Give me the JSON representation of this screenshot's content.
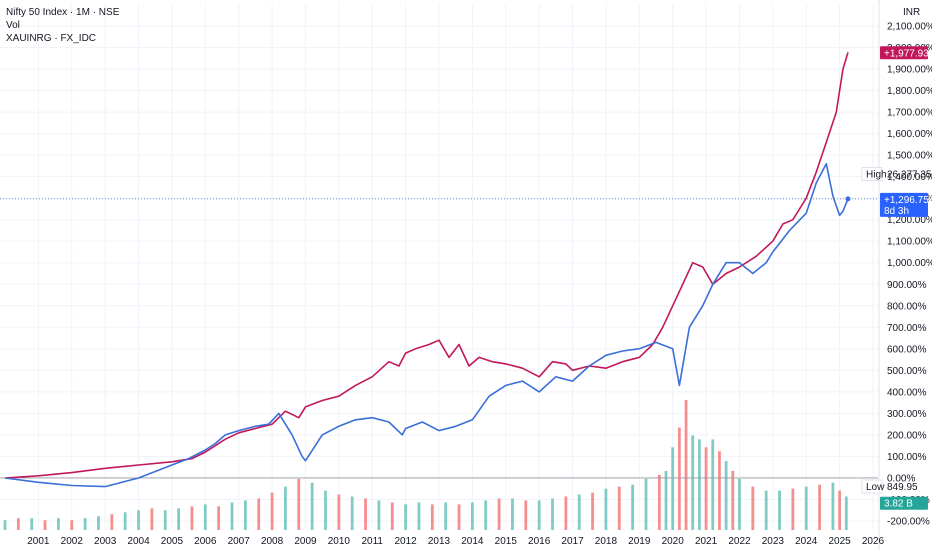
{
  "legend": {
    "title": "Nifty 50 Index · 1M · NSE",
    "vol": "Vol",
    "compare": "XAUINRG · FX_IDC"
  },
  "currency": "INR",
  "colors": {
    "nifty": "#3a6fd8",
    "gold": "#c2185b",
    "vol_up": "#80cbc4",
    "vol_down": "#f48f8f",
    "grid": "#f0f3fa",
    "text": "#131722"
  },
  "chart_data": {
    "type": "line",
    "x_ticks": [
      "2001",
      "2002",
      "2003",
      "2004",
      "2005",
      "2006",
      "2007",
      "2008",
      "2009",
      "2010",
      "2011",
      "2012",
      "2013",
      "2014",
      "2015",
      "2016",
      "2017",
      "2018",
      "2019",
      "2020",
      "2021",
      "2022",
      "2023",
      "2024",
      "2025",
      "2026"
    ],
    "y_ticks": [
      "2,100.00%",
      "2,000.00%",
      "1,900.00%",
      "1,800.00%",
      "1,700.00%",
      "1,600.00%",
      "1,500.00%",
      "1,400.00%",
      "1,300.00%",
      "1,200.00%",
      "1,100.00%",
      "1,000.00%",
      "900.00%",
      "800.00%",
      "700.00%",
      "600.00%",
      "500.00%",
      "400.00%",
      "300.00%",
      "200.00%",
      "100.00%",
      "0.00%",
      "-100.00%",
      "-200.00%"
    ],
    "ylim": [
      -200,
      2100
    ],
    "x_range": [
      2000.0,
      2026.3
    ],
    "series": [
      {
        "name": "XAUINRG · FX_IDC",
        "x": [
          2000.0,
          2001.0,
          2002.0,
          2003.0,
          2004.0,
          2005.0,
          2005.6,
          2006.0,
          2006.3,
          2006.6,
          2007.0,
          2007.5,
          2008.0,
          2008.4,
          2008.8,
          2009.0,
          2009.5,
          2010.0,
          2010.5,
          2011.0,
          2011.5,
          2011.8,
          2012.0,
          2012.3,
          2012.7,
          2013.0,
          2013.3,
          2013.6,
          2013.9,
          2014.2,
          2014.6,
          2015.0,
          2015.5,
          2016.0,
          2016.4,
          2016.8,
          2017.0,
          2017.5,
          2018.0,
          2018.5,
          2019.0,
          2019.4,
          2019.7,
          2020.0,
          2020.3,
          2020.6,
          2020.9,
          2021.2,
          2021.6,
          2022.0,
          2022.5,
          2023.0,
          2023.3,
          2023.6,
          2024.0,
          2024.3,
          2024.6,
          2024.9,
          2025.0,
          2025.1,
          2025.25
        ],
        "y": [
          0,
          10,
          25,
          45,
          60,
          75,
          90,
          120,
          150,
          180,
          210,
          230,
          250,
          310,
          280,
          330,
          360,
          380,
          430,
          470,
          540,
          520,
          580,
          600,
          620,
          640,
          560,
          620,
          520,
          560,
          540,
          530,
          510,
          470,
          540,
          530,
          500,
          520,
          510,
          540,
          560,
          620,
          700,
          800,
          900,
          1000,
          980,
          900,
          950,
          980,
          1030,
          1100,
          1180,
          1200,
          1300,
          1420,
          1560,
          1700,
          1800,
          1900,
          1977.93
        ]
      },
      {
        "name": "Nifty 50 Index",
        "x": [
          2000.0,
          2001.0,
          2002.0,
          2003.0,
          2004.0,
          2004.5,
          2005.0,
          2005.5,
          2006.0,
          2006.3,
          2006.6,
          2007.0,
          2007.5,
          2007.9,
          2008.2,
          2008.6,
          2008.9,
          2009.0,
          2009.5,
          2010.0,
          2010.5,
          2011.0,
          2011.5,
          2011.9,
          2012.0,
          2012.5,
          2013.0,
          2013.5,
          2014.0,
          2014.5,
          2015.0,
          2015.5,
          2016.0,
          2016.5,
          2017.0,
          2017.5,
          2018.0,
          2018.5,
          2019.0,
          2019.5,
          2020.0,
          2020.2,
          2020.5,
          2020.9,
          2021.2,
          2021.6,
          2022.0,
          2022.4,
          2022.8,
          2023.0,
          2023.5,
          2024.0,
          2024.3,
          2024.6,
          2024.8,
          2025.0,
          2025.1,
          2025.25
        ],
        "y": [
          0,
          -20,
          -35,
          -40,
          0,
          30,
          60,
          90,
          130,
          160,
          200,
          220,
          240,
          250,
          300,
          200,
          100,
          80,
          200,
          240,
          270,
          280,
          260,
          200,
          230,
          260,
          220,
          240,
          270,
          380,
          430,
          450,
          400,
          470,
          450,
          520,
          570,
          590,
          600,
          630,
          600,
          430,
          700,
          800,
          900,
          1000,
          1000,
          950,
          1000,
          1050,
          1150,
          1230,
          1370,
          1460,
          1310,
          1220,
          1240,
          1296.75
        ]
      }
    ],
    "volume": {
      "x": [
        2000.0,
        2000.4,
        2000.8,
        2001.2,
        2001.6,
        2002.0,
        2002.4,
        2002.8,
        2003.2,
        2003.6,
        2004.0,
        2004.4,
        2004.8,
        2005.2,
        2005.6,
        2006.0,
        2006.4,
        2006.8,
        2007.2,
        2007.6,
        2008.0,
        2008.4,
        2008.8,
        2009.2,
        2009.6,
        2010.0,
        2010.4,
        2010.8,
        2011.2,
        2011.6,
        2012.0,
        2012.4,
        2012.8,
        2013.2,
        2013.6,
        2014.0,
        2014.4,
        2014.8,
        2015.2,
        2015.6,
        2016.0,
        2016.4,
        2016.8,
        2017.2,
        2017.6,
        2018.0,
        2018.4,
        2018.8,
        2019.2,
        2019.6,
        2019.8,
        2020.0,
        2020.2,
        2020.4,
        2020.6,
        2020.8,
        2021.0,
        2021.2,
        2021.4,
        2021.6,
        2021.8,
        2022.0,
        2022.4,
        2022.8,
        2023.2,
        2023.6,
        2024.0,
        2024.4,
        2024.8,
        2025.0,
        2025.2
      ],
      "values": [
        0.5,
        0.6,
        0.6,
        0.5,
        0.6,
        0.5,
        0.6,
        0.7,
        0.8,
        0.9,
        1.0,
        1.1,
        1.0,
        1.1,
        1.2,
        1.3,
        1.2,
        1.4,
        1.5,
        1.6,
        1.9,
        2.2,
        2.6,
        2.4,
        2.0,
        1.8,
        1.7,
        1.6,
        1.5,
        1.4,
        1.3,
        1.4,
        1.3,
        1.4,
        1.3,
        1.4,
        1.5,
        1.6,
        1.6,
        1.5,
        1.5,
        1.6,
        1.7,
        1.8,
        1.9,
        2.1,
        2.2,
        2.3,
        2.6,
        2.8,
        3.0,
        4.2,
        5.2,
        6.6,
        4.8,
        4.6,
        4.2,
        4.6,
        4.0,
        3.5,
        3.0,
        2.6,
        2.2,
        2.0,
        2.0,
        2.1,
        2.2,
        2.3,
        2.4,
        2.0,
        1.7
      ],
      "up": [
        true,
        false,
        true,
        false,
        true,
        false,
        true,
        true,
        false,
        true,
        true,
        false,
        true,
        true,
        false,
        true,
        false,
        true,
        true,
        false,
        false,
        true,
        false,
        true,
        true,
        false,
        true,
        false,
        true,
        false,
        true,
        true,
        false,
        true,
        false,
        true,
        true,
        false,
        true,
        false,
        true,
        true,
        false,
        true,
        false,
        true,
        false,
        true,
        true,
        false,
        true,
        true,
        false,
        false,
        true,
        true,
        false,
        true,
        false,
        true,
        false,
        true,
        false,
        true,
        true,
        false,
        true,
        false,
        true,
        false,
        true
      ]
    },
    "labels": {
      "gold_last": "+1,977.93%",
      "nifty_last": "+1,296.75%",
      "countdown": "8d 3h",
      "high_label": "High",
      "high_value": "26,277.35",
      "low_label": "Low",
      "low_value": "849.95",
      "volume_last": "3.82 B"
    },
    "grid": true
  }
}
